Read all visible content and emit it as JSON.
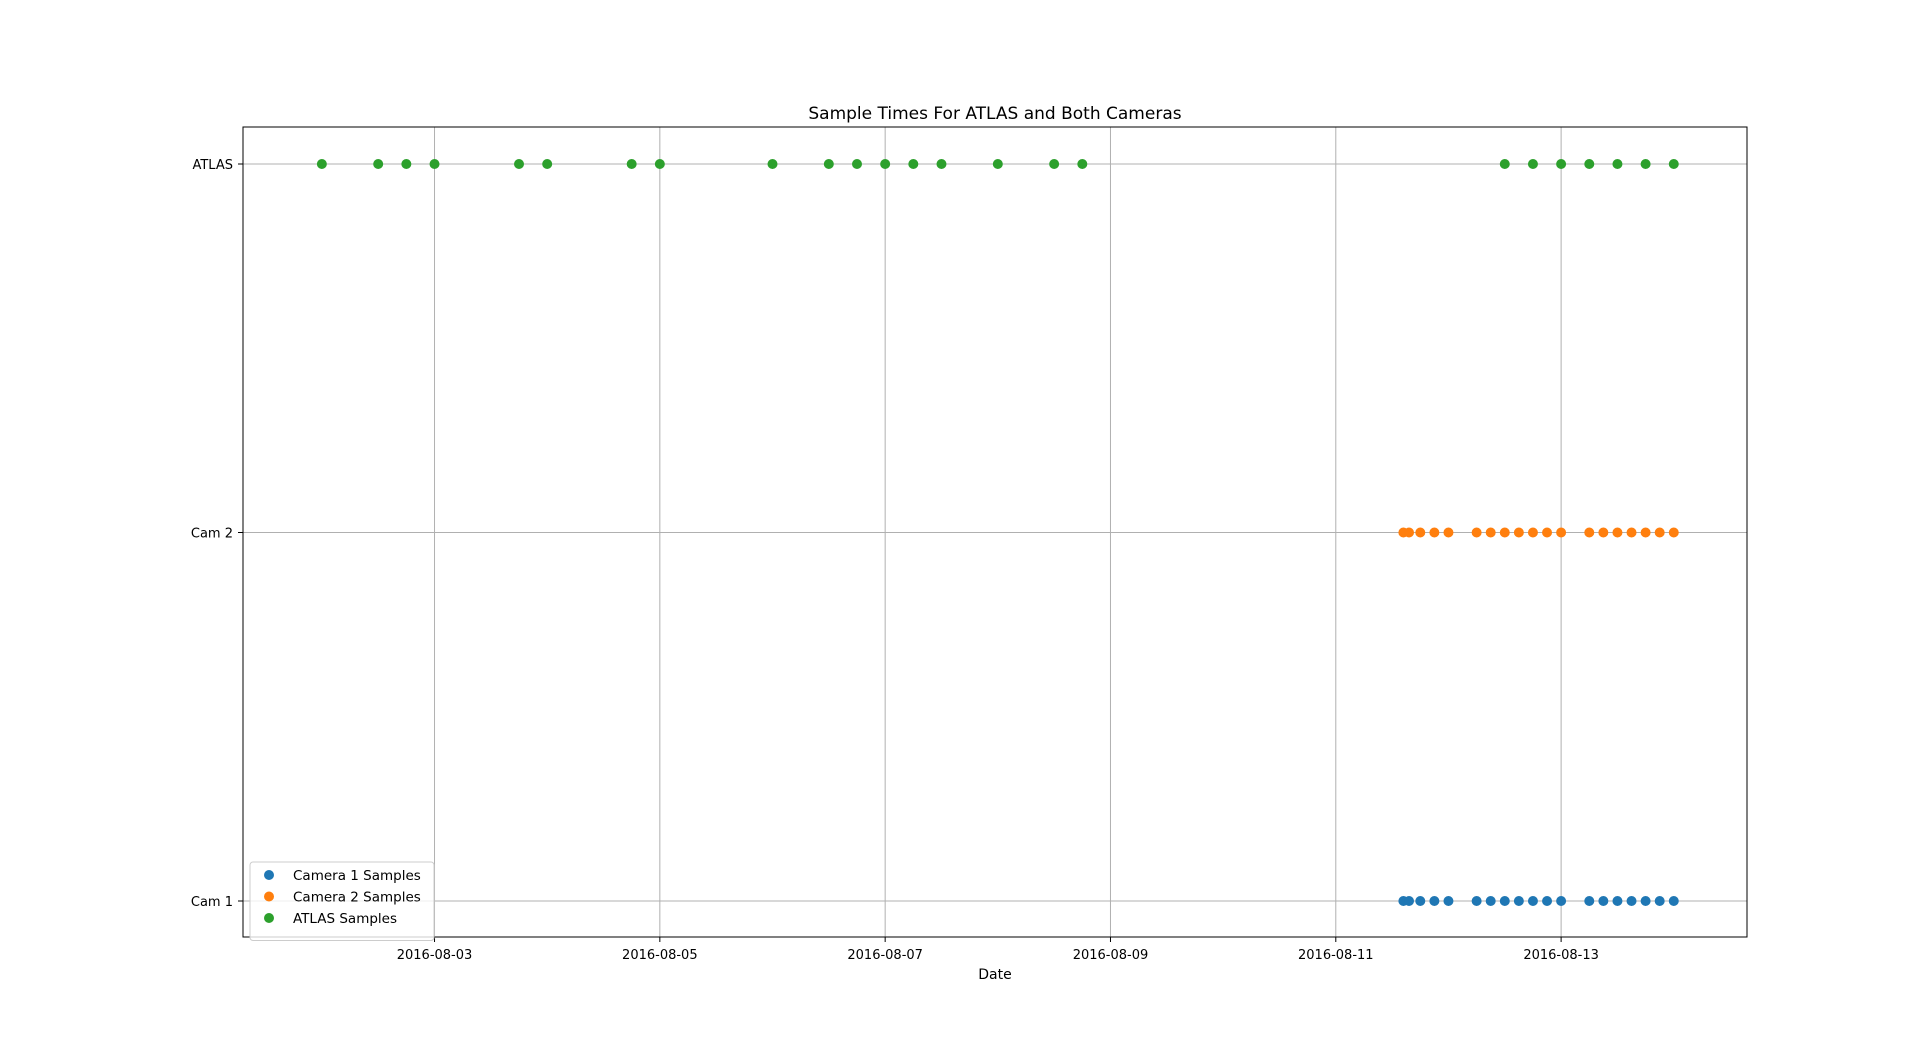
{
  "chart_data": {
    "type": "scatter",
    "title": "Sample Times For ATLAS and Both Cameras",
    "xlabel": "Date",
    "ylabel": "",
    "x_axis": {
      "type": "date",
      "min": "2016-08-01 07:12",
      "max": "2016-08-14 15:36",
      "ticks": [
        "2016-08-03",
        "2016-08-05",
        "2016-08-07",
        "2016-08-09",
        "2016-08-11",
        "2016-08-13"
      ]
    },
    "y_axis": {
      "categories": [
        "Cam 1",
        "Cam 2",
        "ATLAS"
      ]
    },
    "grid": true,
    "legend_position": "lower-left",
    "series": [
      {
        "name": "Camera 1 Samples",
        "color": "#1f77b4",
        "y": "Cam 1",
        "x": [
          "2016-08-11 14:24",
          "2016-08-11 15:36",
          "2016-08-11 18:00",
          "2016-08-11 21:00",
          "2016-08-12 00:00",
          "2016-08-12 06:00",
          "2016-08-12 09:00",
          "2016-08-12 12:00",
          "2016-08-12 15:00",
          "2016-08-12 18:00",
          "2016-08-12 21:00",
          "2016-08-13 00:00",
          "2016-08-13 06:00",
          "2016-08-13 09:00",
          "2016-08-13 12:00",
          "2016-08-13 15:00",
          "2016-08-13 18:00",
          "2016-08-13 21:00",
          "2016-08-14 00:00"
        ]
      },
      {
        "name": "Camera 2 Samples",
        "color": "#ff7f0e",
        "y": "Cam 2",
        "x": [
          "2016-08-11 14:24",
          "2016-08-11 15:36",
          "2016-08-11 18:00",
          "2016-08-11 21:00",
          "2016-08-12 00:00",
          "2016-08-12 06:00",
          "2016-08-12 09:00",
          "2016-08-12 12:00",
          "2016-08-12 15:00",
          "2016-08-12 18:00",
          "2016-08-12 21:00",
          "2016-08-13 00:00",
          "2016-08-13 06:00",
          "2016-08-13 09:00",
          "2016-08-13 12:00",
          "2016-08-13 15:00",
          "2016-08-13 18:00",
          "2016-08-13 21:00",
          "2016-08-14 00:00"
        ]
      },
      {
        "name": "ATLAS Samples",
        "color": "#2ca02c",
        "y": "ATLAS",
        "x": [
          "2016-08-02 00:00",
          "2016-08-02 12:00",
          "2016-08-02 18:00",
          "2016-08-03 00:00",
          "2016-08-03 18:00",
          "2016-08-04 00:00",
          "2016-08-04 18:00",
          "2016-08-05 00:00",
          "2016-08-06 00:00",
          "2016-08-06 12:00",
          "2016-08-06 18:00",
          "2016-08-07 00:00",
          "2016-08-07 06:00",
          "2016-08-07 12:00",
          "2016-08-08 00:00",
          "2016-08-08 12:00",
          "2016-08-08 18:00",
          "2016-08-12 12:00",
          "2016-08-12 18:00",
          "2016-08-13 00:00",
          "2016-08-13 06:00",
          "2016-08-13 12:00",
          "2016-08-13 18:00",
          "2016-08-14 00:00"
        ]
      }
    ]
  }
}
